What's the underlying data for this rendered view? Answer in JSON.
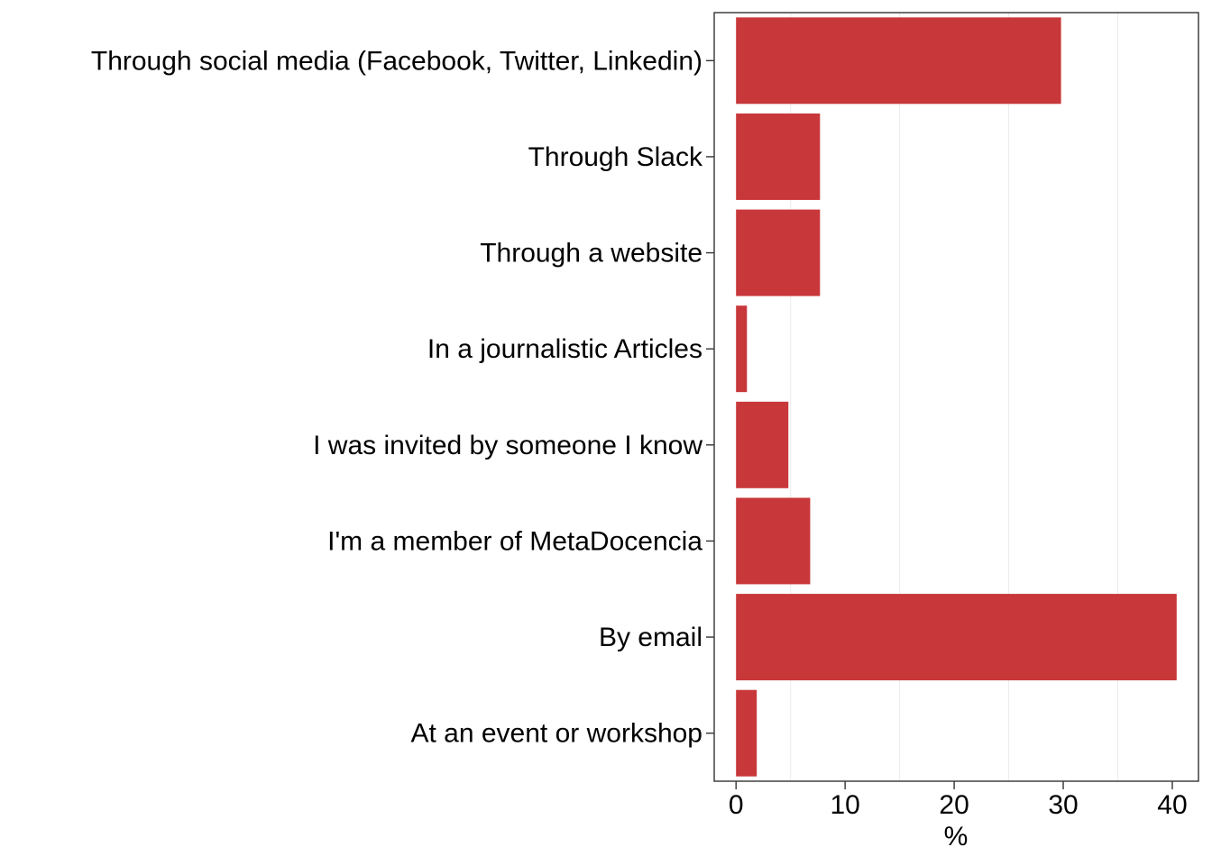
{
  "chart_data": {
    "type": "bar",
    "orientation": "horizontal",
    "categories": [
      "Through social media (Facebook, Twitter, Linkedin)",
      "Through Slack",
      "Through a website",
      "In a journalistic Articles",
      "I was invited by someone I know",
      "I'm a member of MetaDocencia",
      "By email",
      "At an event or workshop"
    ],
    "values": [
      29.8,
      7.7,
      7.7,
      1.0,
      4.8,
      6.8,
      40.4,
      1.9
    ],
    "xlabel": "%",
    "ylabel": "",
    "xlim": [
      -2,
      42.4
    ],
    "xticks": [
      0,
      10,
      20,
      30,
      40
    ],
    "grid": "vertical minor lines",
    "bar_color": "#c8373a",
    "legend": "none"
  }
}
